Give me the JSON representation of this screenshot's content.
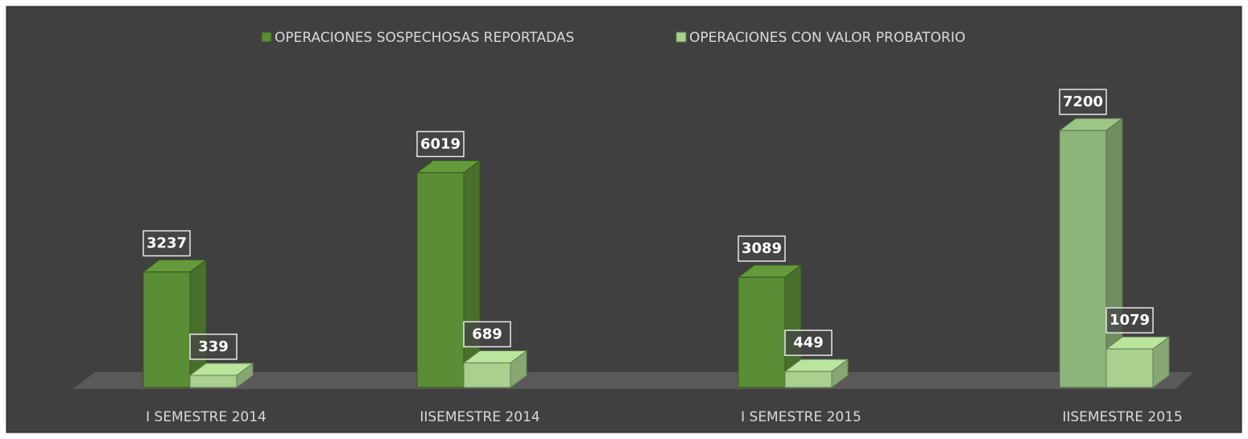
{
  "chart_data": {
    "type": "bar3d",
    "categories": [
      "I SEMESTRE 2014",
      "IISEMESTRE 2014",
      "I SEMESTRE 2015",
      "IISEMESTRE 2015"
    ],
    "series": [
      {
        "name": "OPERACIONES SOSPECHOSAS REPORTADAS",
        "color": "#5b8c36",
        "point_colors": [
          "#5b8c36",
          "#5b8c36",
          "#5b8c36",
          "#8db47a"
        ],
        "values": [
          3237,
          6019,
          3089,
          7200
        ]
      },
      {
        "name": "OPERACIONES CON VALOR PROBATORIO",
        "color": "#a9d08e",
        "values": [
          339,
          689,
          449,
          1079
        ]
      }
    ],
    "legend": "top"
  }
}
